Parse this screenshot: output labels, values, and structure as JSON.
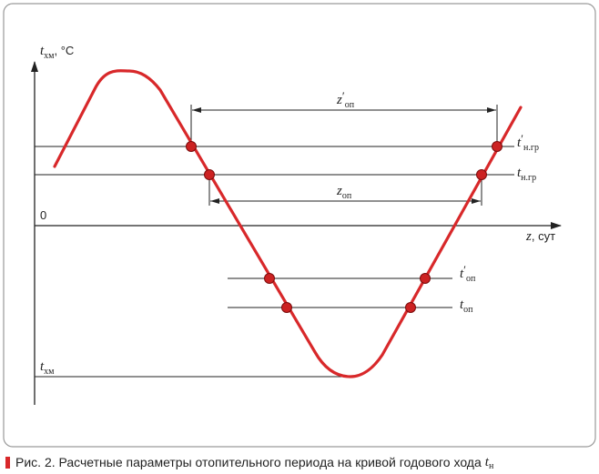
{
  "diagram": {
    "y_axis": {
      "symbol": "t",
      "subscript": "хм",
      "unit": ", °C"
    },
    "x_axis": {
      "symbol": "z",
      "unit": ", сут"
    },
    "origin": "0",
    "span_labels": [
      {
        "symbol": "z",
        "prime": "′",
        "subscript": "оп"
      },
      {
        "symbol": "z",
        "prime": "",
        "subscript": "оп"
      }
    ],
    "level_labels": [
      {
        "symbol": "t",
        "prime": "′",
        "subscript": "н.гр"
      },
      {
        "symbol": "t",
        "prime": "",
        "subscript": "н.гр"
      },
      {
        "symbol": "t",
        "prime": "′",
        "subscript": "оп"
      },
      {
        "symbol": "t",
        "prime": "",
        "subscript": "оп"
      },
      {
        "symbol": "t",
        "prime": "",
        "subscript": "хм"
      }
    ]
  },
  "caption": {
    "text": "Рис. 2. Расчетные параметры отопительного периода на кривой годового хода",
    "symbol": "t",
    "subscript": "н"
  },
  "colors": {
    "curve": "#d8282a",
    "point": "#cc2222",
    "frame": "#9a9a9a",
    "line": "#222222",
    "accent": "#d8282a"
  }
}
